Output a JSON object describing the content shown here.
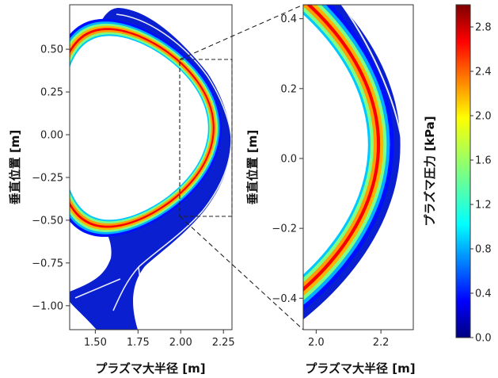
{
  "chart_data": [
    {
      "type": "heatmap",
      "panel": "full-cross-section",
      "xlabel": "プラズマ大半径 [m]",
      "ylabel": "垂直位置 [m]",
      "xlim": [
        1.35,
        2.3
      ],
      "ylim": [
        -1.14,
        0.76
      ],
      "x_ticks": [
        "1.50",
        "1.75",
        "2.00",
        "2.25"
      ],
      "x_tick_values": [
        1.5,
        1.75,
        2.0,
        2.25
      ],
      "y_ticks": [
        "0.50",
        "0.25",
        "0.00",
        "−0.25",
        "−0.50",
        "−0.75",
        "−1.00"
      ],
      "y_tick_values": [
        0.5,
        0.25,
        0.0,
        -0.25,
        -0.5,
        -0.75,
        -1.0
      ],
      "zoom_box": {
        "x": [
          1.99,
          2.29
        ],
        "y": [
          -0.47,
          0.43
        ]
      },
      "separatrix_shape": {
        "center_r": 1.73,
        "minor_radius": 0.5,
        "elongation": 1.25,
        "triangularity": 0.35,
        "x_point": [
          1.63,
          -0.83
        ]
      }
    },
    {
      "type": "heatmap",
      "panel": "zoomed-edge",
      "xlabel": "プラズマ大半径 [m]",
      "ylabel": "垂直位置 [m]",
      "xlim": [
        1.96,
        2.3
      ],
      "ylim": [
        -0.49,
        0.44
      ],
      "x_ticks": [
        "2.0",
        "2.2"
      ],
      "x_tick_values": [
        2.0,
        2.2
      ],
      "y_ticks": [
        "0.4",
        "0.2",
        "0.0",
        "−0.2",
        "−0.4"
      ],
      "y_tick_values": [
        0.4,
        0.2,
        0.0,
        -0.2,
        -0.4
      ]
    },
    {
      "type": "colorbar",
      "label": "プラズマ圧力 [kPa]",
      "range": [
        0.0,
        3.0
      ],
      "ticks": [
        "0.0",
        "0.4",
        "0.8",
        "1.2",
        "1.6",
        "2.0",
        "2.4",
        "2.8"
      ],
      "tick_values": [
        0.0,
        0.4,
        0.8,
        1.2,
        1.6,
        2.0,
        2.4,
        2.8
      ],
      "colormap": "jet"
    }
  ]
}
